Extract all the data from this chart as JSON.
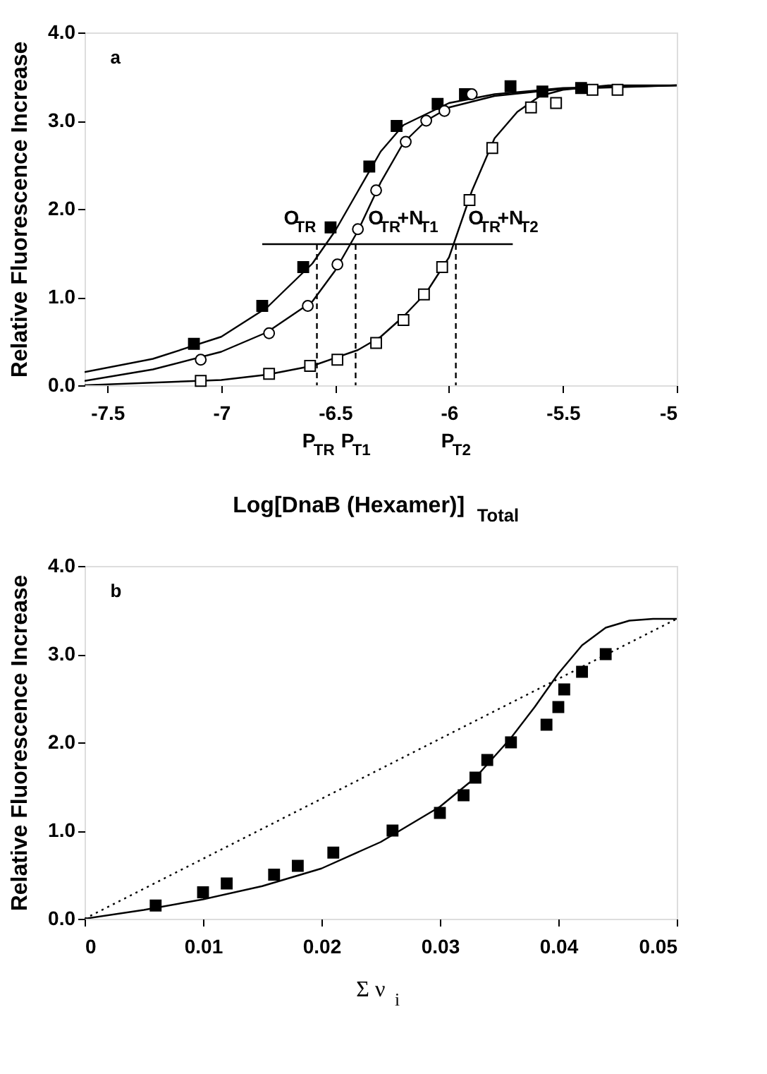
{
  "chart_data": [
    {
      "type": "scatter",
      "xlabel": "Log[DnaB (Hexamer)]$_{Total}$",
      "ylabel": "Relative Fluorescence Increase",
      "xlim": [
        -7.6,
        -5
      ],
      "xticks": [
        -7.5,
        -7,
        -6.5,
        -6,
        -5.5,
        -5
      ],
      "ylim": [
        0,
        4
      ],
      "yticks": [
        {
          "value": 0,
          "label": "0.0"
        },
        {
          "value": 1,
          "label": "1.0"
        },
        {
          "value": 2,
          "label": "2.0"
        },
        {
          "value": 3,
          "label": "3.0"
        },
        {
          "value": 4,
          "label": "4.0"
        }
      ],
      "grid": false,
      "series": [
        {
          "type": "line",
          "name": "O$_{TR}$",
          "color": "#000000",
          "line_style": "solid",
          "x": [
            -7.6,
            -7.3,
            -7.0,
            -6.8,
            -6.6,
            -6.5,
            -6.4,
            -6.3,
            -6.2,
            -6.0,
            -5.8,
            -5.5,
            -5.0
          ],
          "values": [
            0.15,
            0.3,
            0.55,
            0.88,
            1.38,
            1.75,
            2.2,
            2.65,
            2.95,
            3.2,
            3.3,
            3.37,
            3.4
          ]
        },
        {
          "type": "line",
          "name": "O$_{TR}$+N$_{T1}$",
          "color": "#000000",
          "line_style": "solid",
          "x": [
            -7.6,
            -7.3,
            -7.0,
            -6.8,
            -6.6,
            -6.5,
            -6.4,
            -6.3,
            -6.2,
            -6.1,
            -6.0,
            -5.8,
            -5.5,
            -5.0
          ],
          "values": [
            0.05,
            0.18,
            0.38,
            0.6,
            0.95,
            1.3,
            1.75,
            2.3,
            2.75,
            3.0,
            3.15,
            3.28,
            3.36,
            3.4
          ]
        },
        {
          "type": "line",
          "name": "O$_{TR}$+N$_{T2}$",
          "color": "#000000",
          "line_style": "solid",
          "x": [
            -7.6,
            -7.0,
            -6.8,
            -6.6,
            -6.4,
            -6.3,
            -6.2,
            -6.1,
            -6.0,
            -5.9,
            -5.8,
            -5.7,
            -5.6,
            -5.5,
            -5.3,
            -5.0
          ],
          "values": [
            0.0,
            0.06,
            0.12,
            0.22,
            0.4,
            0.55,
            0.78,
            1.05,
            1.45,
            2.2,
            2.8,
            3.1,
            3.28,
            3.35,
            3.4,
            3.4
          ]
        },
        {
          "type": "line",
          "color": "#000000",
          "line_style": "solid",
          "x": [
            -6.82,
            -5.72
          ],
          "values": [
            1.6,
            1.6
          ]
        },
        {
          "type": "line",
          "name": "P$_{TR}$",
          "color": "#000000",
          "line_style": "dashed",
          "x": [
            -6.58,
            -6.58
          ],
          "values": [
            1.6,
            0
          ]
        },
        {
          "type": "line",
          "name": "P$_{T1}$",
          "color": "#000000",
          "line_style": "dashed",
          "x": [
            -6.41,
            -6.41
          ],
          "values": [
            1.6,
            0
          ]
        },
        {
          "type": "line",
          "name": "P$_{T2}$",
          "color": "#000000",
          "line_style": "dashed",
          "x": [
            -5.97,
            -5.97
          ],
          "values": [
            1.6,
            0
          ]
        },
        {
          "marker": "square",
          "color": "#000000",
          "x": [
            -7.12,
            -6.82,
            -6.64,
            -6.52,
            -6.35,
            -6.23,
            -6.05,
            -5.93,
            -5.73,
            -5.59,
            -5.42
          ],
          "values": [
            0.47,
            0.9,
            1.34,
            1.79,
            2.48,
            2.94,
            3.19,
            3.3,
            3.39,
            3.33,
            3.37
          ]
        },
        {
          "marker": "circle",
          "color": "#ffffff",
          "x": [
            -7.09,
            -6.79,
            -6.62,
            -6.49,
            -6.4,
            -6.32,
            -6.19,
            -6.1,
            -6.02,
            -5.9
          ],
          "values": [
            0.29,
            0.59,
            0.9,
            1.37,
            1.77,
            2.21,
            2.76,
            3.0,
            3.11,
            3.3
          ]
        },
        {
          "marker": "square",
          "color": "#ffffff",
          "x": [
            -7.09,
            -6.79,
            -6.61,
            -6.49,
            -6.32,
            -6.2,
            -6.11,
            -6.03,
            -5.91,
            -5.81,
            -5.64,
            -5.53,
            -5.37,
            -5.26
          ],
          "values": [
            0.05,
            0.13,
            0.22,
            0.29,
            0.48,
            0.74,
            1.03,
            1.34,
            2.1,
            2.69,
            3.15,
            3.2,
            3.35,
            3.35
          ]
        }
      ],
      "annotations": [
        "a"
      ]
    },
    {
      "type": "scatter",
      "xlabel": "Σ ν$_{i}$",
      "ylabel": "Relative Fluorescence Increase",
      "xlim": [
        0,
        0.05
      ],
      "xticks": [
        0,
        0.01,
        0.02,
        0.03,
        0.04,
        0.05
      ],
      "ylim": [
        0,
        4
      ],
      "yticks": [
        {
          "value": 0,
          "label": "0.0"
        },
        {
          "value": 1,
          "label": "1.0"
        },
        {
          "value": 2,
          "label": "2.0"
        },
        {
          "value": 3,
          "label": "3.0"
        },
        {
          "value": 4,
          "label": "4.0"
        }
      ],
      "grid": false,
      "series": [
        {
          "type": "line",
          "color": "#000000",
          "line_style": "solid",
          "x": [
            0,
            0.005,
            0.01,
            0.015,
            0.02,
            0.025,
            0.03,
            0.033,
            0.036,
            0.038,
            0.04,
            0.042,
            0.044,
            0.046,
            0.048,
            0.05
          ],
          "values": [
            0,
            0.1,
            0.22,
            0.37,
            0.57,
            0.87,
            1.27,
            1.6,
            2.05,
            2.4,
            2.78,
            3.1,
            3.3,
            3.38,
            3.4,
            3.4
          ]
        },
        {
          "type": "line",
          "color": "#000000",
          "line_style": "dotted",
          "x": [
            0,
            0.05
          ],
          "values": [
            0,
            3.4
          ]
        },
        {
          "marker": "square",
          "color": "#000000",
          "x": [
            0.006,
            0.01,
            0.012,
            0.016,
            0.018,
            0.021,
            0.026,
            0.03,
            0.032,
            0.033,
            0.034,
            0.036,
            0.039,
            0.04,
            0.0405,
            0.042,
            0.044
          ],
          "values": [
            0.15,
            0.3,
            0.4,
            0.5,
            0.6,
            0.75,
            1.0,
            1.2,
            1.4,
            1.6,
            1.8,
            2.0,
            2.2,
            2.4,
            2.6,
            2.8,
            3.0
          ]
        }
      ],
      "annotations": [
        "b"
      ]
    }
  ]
}
